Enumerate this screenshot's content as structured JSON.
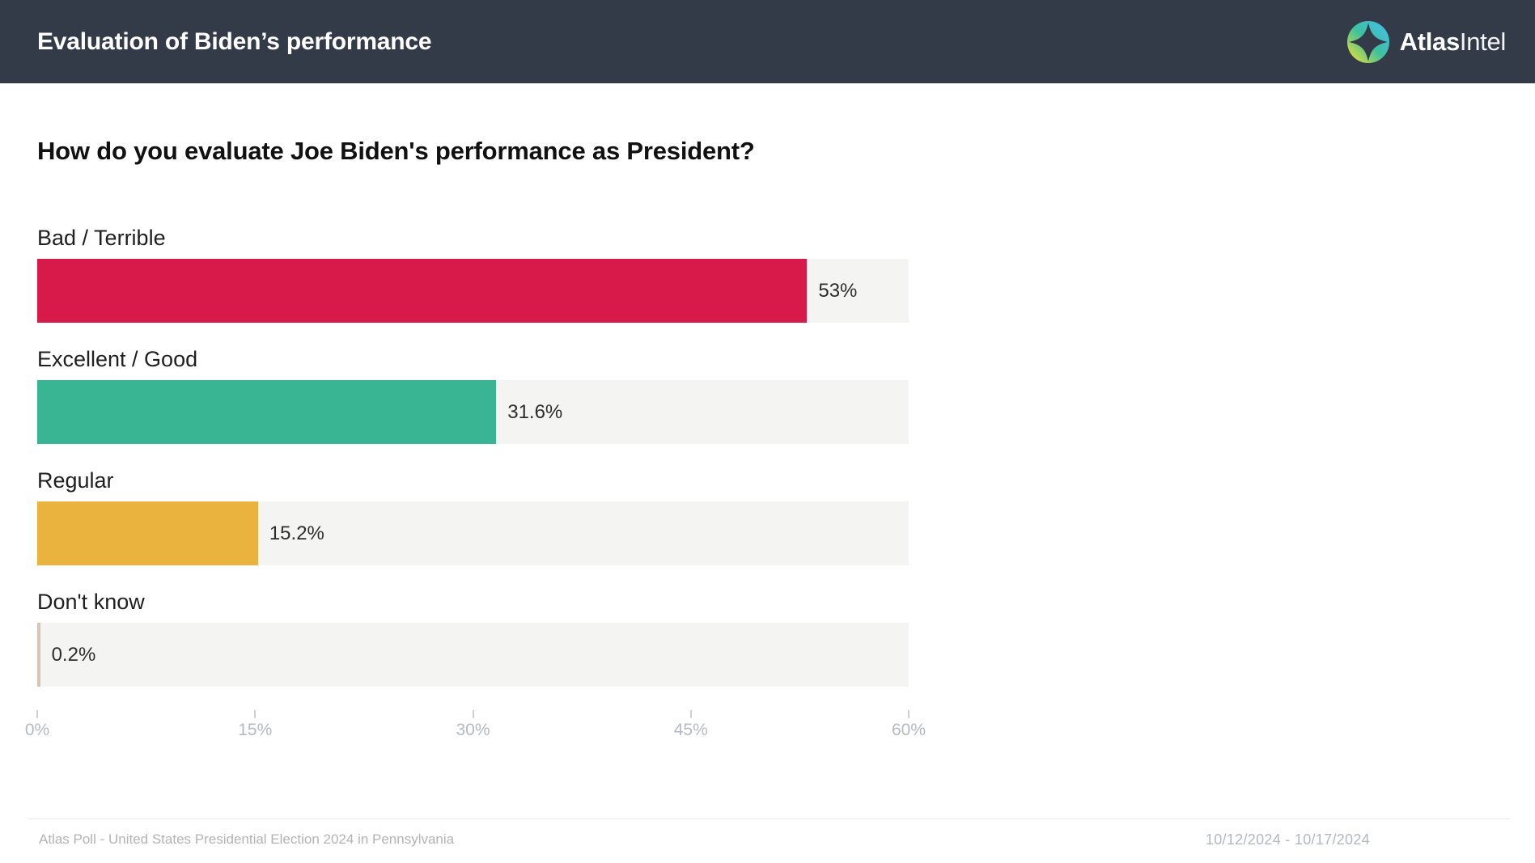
{
  "header": {
    "title": "Evaluation of Biden’s performance",
    "brand": {
      "bold": "Atlas",
      "light": "Intel",
      "logo_icon": "compass-star-icon"
    }
  },
  "question": "How do you evaluate Joe Biden's performance as President?",
  "chart_data": {
    "type": "bar",
    "orientation": "horizontal",
    "title": "How do you evaluate Joe Biden's performance as President?",
    "categories": [
      "Bad / Terrible",
      "Excellent / Good",
      "Regular",
      "Don't know"
    ],
    "values": [
      53,
      31.6,
      15.2,
      0.2
    ],
    "value_labels": [
      "53%",
      "31.6%",
      "15.2%",
      "0.2%"
    ],
    "bar_colors": [
      "#d81a4b",
      "#3ab593",
      "#eab33d",
      "#d8c3b8"
    ],
    "track_color": "#f4f4f2",
    "xlabel": "",
    "ylabel": "",
    "xlim": [
      0,
      60
    ],
    "x_ticks": [
      "0%",
      "15%",
      "30%",
      "45%",
      "60%"
    ],
    "x_tick_values": [
      0,
      15,
      30,
      45,
      60
    ],
    "grid": false,
    "legend": "none"
  },
  "footer": {
    "source": "Atlas Poll - United States Presidential Election 2024 in Pennsylvania",
    "date_range": "10/12/2024 - 10/17/2024"
  },
  "colors": {
    "header_bg": "#343b48",
    "bar_red": "#d81a4b",
    "bar_teal": "#3ab593",
    "bar_amber": "#eab33d",
    "bar_tan": "#d8c3b8",
    "track": "#f4f4f2",
    "axis_text": "#b4b9c3",
    "footer_text": "#b3b3b3"
  }
}
